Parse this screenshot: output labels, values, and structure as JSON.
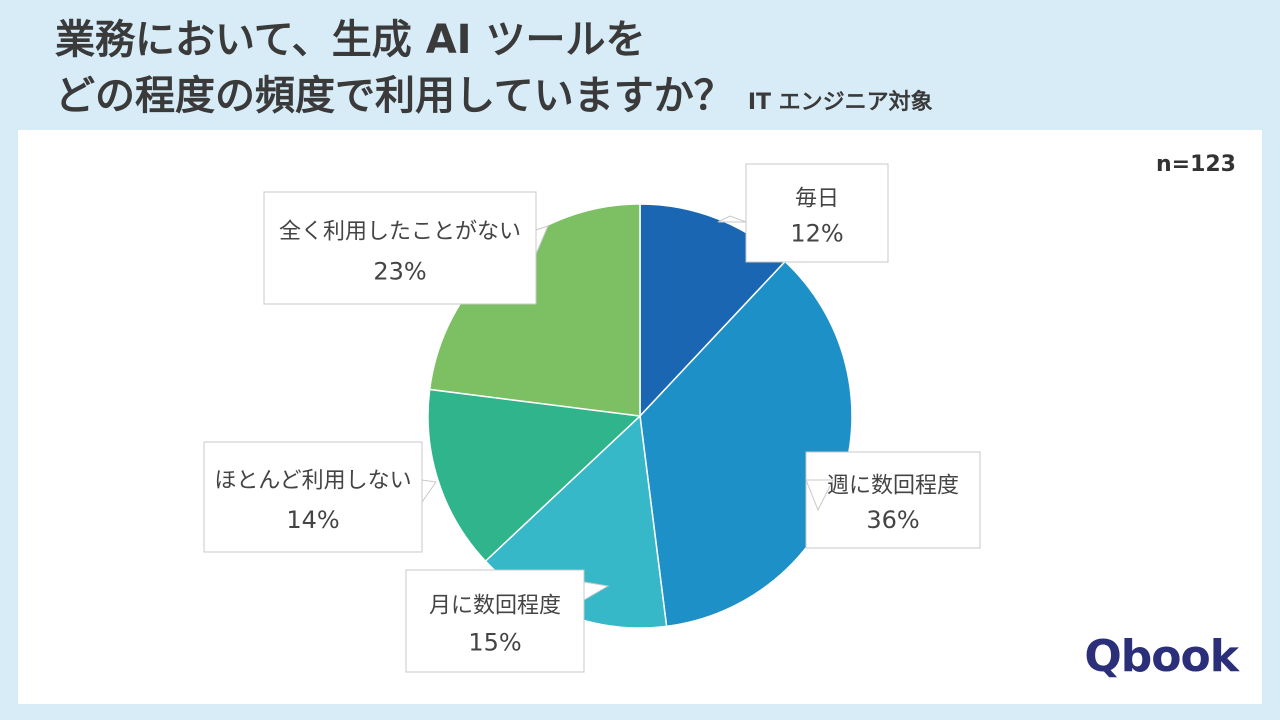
{
  "title": {
    "line1": "業務において、生成 AI ツールを",
    "line2": "どの程度の頻度で利用していますか？",
    "tag": "IT エンジニア対象"
  },
  "sample": "n=123",
  "logo": "Qbook",
  "chart_data": {
    "type": "pie",
    "start_angle_deg": 0,
    "direction": "clockwise",
    "slices": [
      {
        "label": "毎日",
        "value": 12,
        "value_label": "12%",
        "color": "#1a66b3"
      },
      {
        "label": "週に数回程度",
        "value": 36,
        "value_label": "36%",
        "color": "#1e90c8"
      },
      {
        "label": "月に数回程度",
        "value": 15,
        "value_label": "15%",
        "color": "#36b8c8"
      },
      {
        "label": "ほとんど利用しない",
        "value": 14,
        "value_label": "14%",
        "color": "#2fb48c"
      },
      {
        "label": "全く利用したことがない",
        "value": 23,
        "value_label": "23%",
        "color": "#7cc063"
      }
    ]
  }
}
